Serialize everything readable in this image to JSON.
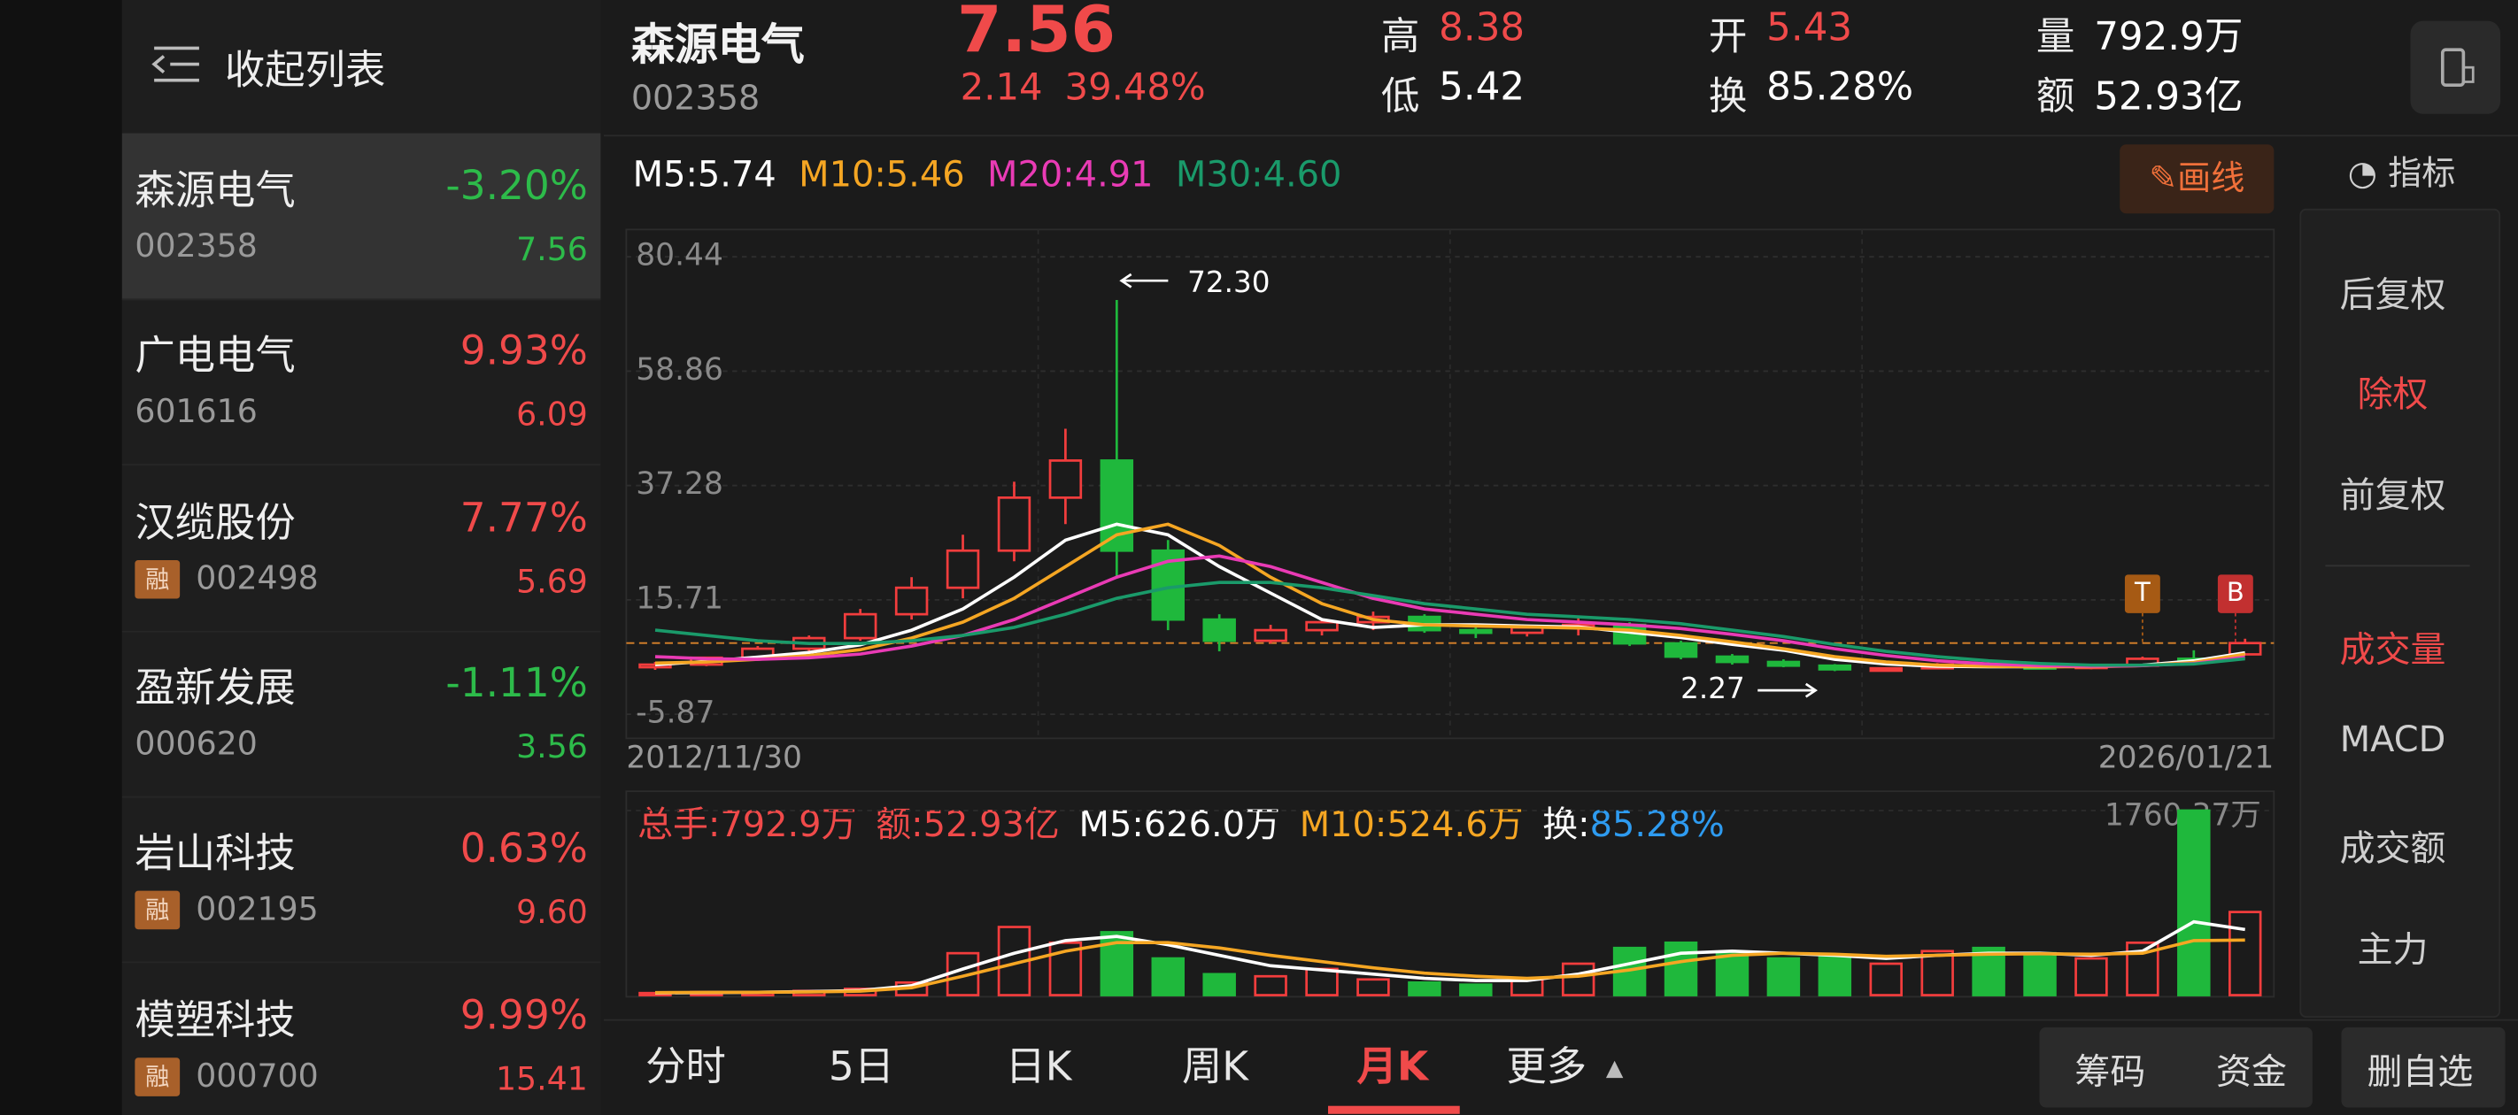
{
  "sidebar": {
    "title": "收起列表",
    "items": [
      {
        "name": "森源电气",
        "change": "-3.20%",
        "code": "002358",
        "price": "7.56"
      },
      {
        "name": "广电电气",
        "change": "9.93%",
        "code": "601616",
        "price": "6.09"
      },
      {
        "name": "汉缆股份",
        "change": "7.77%",
        "tag": "融",
        "code": "002498",
        "price": "5.69"
      },
      {
        "name": "盈新发展",
        "change": "-1.11%",
        "code": "000620",
        "price": "3.56"
      },
      {
        "name": "岩山科技",
        "change": "0.63%",
        "tag": "融",
        "code": "002195",
        "price": "9.60"
      },
      {
        "name": "模塑科技",
        "change": "9.99%",
        "tag": "融",
        "code": "000700",
        "price": "15.41"
      }
    ]
  },
  "header": {
    "title": "森源电气",
    "code": "002358",
    "price": "7.56",
    "change": "2.14",
    "change_pct": "39.48%",
    "stats": [
      {
        "label": "高",
        "value": "8.38",
        "color": "#f04a4a"
      },
      {
        "label": "低",
        "value": "5.42",
        "color": "#ffffff"
      },
      {
        "label": "开",
        "value": "5.43",
        "color": "#f04a4a"
      },
      {
        "label": "换",
        "value": "85.28%",
        "color": "#ffffff"
      },
      {
        "label": "量",
        "value": "792.9万",
        "color": "#ffffff"
      },
      {
        "label": "额",
        "value": "52.93亿",
        "color": "#ffffff"
      }
    ],
    "draw_button": "画线"
  },
  "chart_data": [
    {
      "type": "candlestick",
      "categories": [
        "2012/11/30",
        null,
        null,
        null,
        null,
        null,
        null,
        null,
        null,
        null,
        null,
        null,
        null,
        null,
        null,
        null,
        null,
        null,
        null,
        null,
        null,
        null,
        null,
        null,
        null,
        null,
        null,
        null,
        null,
        null,
        null,
        "2026/01/21"
      ],
      "open": [
        3,
        3.5,
        4.8,
        6.5,
        8.5,
        13,
        18,
        25,
        35,
        42,
        25,
        12,
        8,
        10,
        11.5,
        12.5,
        10,
        9.5,
        10.5,
        11,
        7.5,
        5,
        4,
        3.3,
        2.6,
        2.8,
        3.5,
        3.2,
        3.0,
        3.3,
        4.6,
        5.43
      ],
      "high": [
        4,
        5,
        7,
        9,
        14,
        20,
        28,
        38,
        48,
        72.3,
        27,
        13,
        11,
        12,
        13.5,
        13,
        11,
        11,
        12.5,
        11.5,
        8,
        5.5,
        4.5,
        3.6,
        3,
        3.8,
        4,
        3.6,
        3.4,
        5,
        6.2,
        8.38
      ],
      "low": [
        2.5,
        3.2,
        4.5,
        6,
        8,
        12,
        16,
        23,
        30,
        20,
        10,
        6,
        7.5,
        9,
        10,
        9.5,
        8.5,
        8.8,
        9,
        7,
        4.5,
        3.5,
        3,
        2.27,
        2.4,
        2.7,
        3,
        2.8,
        2.6,
        3.1,
        4.2,
        5.42
      ],
      "close": [
        3.5,
        4.8,
        6.5,
        8.5,
        13,
        18,
        25,
        35,
        42,
        25,
        12,
        8,
        10,
        11.5,
        12.5,
        10,
        9.5,
        10.5,
        11,
        7.5,
        5,
        4,
        3.3,
        2.6,
        2.8,
        3.5,
        3.2,
        3.0,
        3.3,
        4.6,
        4.4,
        7.56
      ],
      "up_color": "#f23d3d",
      "down_color": "#1fb83c",
      "ylim": [
        -5.87,
        80.44
      ],
      "yticks": [
        -5.87,
        15.71,
        37.28,
        58.86,
        80.44
      ],
      "grid": true,
      "series": [
        {
          "name": "M5",
          "legend_label": "M5:5.74",
          "color": "#ffffff",
          "values": [
            3.5,
            4.1,
            4.9,
            5.8,
            7.2,
            10,
            14,
            20,
            27,
            30,
            28,
            22,
            17,
            12,
            10.5,
            11,
            11,
            10.8,
            10.6,
            9.6,
            8.6,
            7.3,
            6.2,
            4.5,
            3.6,
            3.2,
            3.1,
            3.1,
            3.2,
            3.4,
            4.2,
            5.74
          ]
        },
        {
          "name": "M10",
          "legend_label": "M10:5.46",
          "color": "#f5a623",
          "values": [
            3.8,
            4.0,
            4.5,
            5.2,
            6.3,
            8.5,
            11.5,
            16,
            22,
            28,
            30,
            26,
            20,
            15,
            12,
            11,
            10.8,
            10.6,
            10.4,
            10,
            9,
            7.8,
            6.5,
            5,
            4,
            3.4,
            3.2,
            3.1,
            3.1,
            3.3,
            3.9,
            5.46
          ]
        },
        {
          "name": "M20",
          "legend_label": "M20:4.91",
          "color": "#e93bb5",
          "values": [
            5,
            4.6,
            4.5,
            4.8,
            5.5,
            7,
            9,
            12,
            16,
            20,
            23,
            24,
            22,
            19,
            16,
            14,
            13,
            12,
            11.5,
            11,
            10.3,
            9.2,
            8,
            6.5,
            5.2,
            4.2,
            3.6,
            3.3,
            3.2,
            3.3,
            3.7,
            4.91
          ]
        },
        {
          "name": "M30",
          "legend_label": "M30:4.60",
          "color": "#1a9a6a",
          "values": [
            10,
            9,
            8,
            7.5,
            7.5,
            8,
            9,
            10.5,
            13,
            16,
            18,
            19,
            19,
            18,
            16.5,
            15,
            14,
            13,
            12.5,
            12,
            11.2,
            10,
            8.8,
            7.3,
            6,
            5,
            4.2,
            3.7,
            3.4,
            3.4,
            3.6,
            4.6
          ]
        }
      ],
      "annotations": [
        {
          "text": "72.30"
        },
        {
          "text": "2.27"
        }
      ],
      "markers": [
        {
          "text": "T",
          "color": "#a65a14"
        },
        {
          "text": "B",
          "color": "#c23030"
        }
      ]
    },
    {
      "type": "bar",
      "values": [
        20,
        30,
        25,
        40,
        60,
        120,
        400,
        650,
        500,
        600,
        350,
        200,
        180,
        250,
        150,
        120,
        100,
        150,
        300,
        450,
        500,
        400,
        350,
        380,
        300,
        420,
        450,
        400,
        350,
        500,
        1760.37,
        792.9
      ],
      "ylim": [
        0,
        1760.37
      ],
      "yticks": [
        {
          "value": 1760.37,
          "label": "1760.37万"
        }
      ],
      "series": [
        {
          "name": "M5",
          "color": "#ffffff",
          "values": [
            22,
            25,
            28,
            33,
            45,
            90,
            250,
            400,
            520,
            560,
            480,
            380,
            280,
            240,
            200,
            160,
            140,
            140,
            200,
            300,
            400,
            420,
            400,
            380,
            350,
            380,
            400,
            400,
            380,
            420,
            700,
            626.0
          ]
        },
        {
          "name": "M10",
          "color": "#f5a623",
          "values": [
            25,
            26,
            27,
            30,
            38,
            70,
            180,
            300,
            420,
            500,
            500,
            450,
            380,
            320,
            260,
            210,
            180,
            160,
            180,
            240,
            320,
            380,
            400,
            390,
            370,
            380,
            390,
            395,
            390,
            400,
            520,
            524.6
          ]
        }
      ],
      "legend": [
        {
          "text": "总手:792.9万",
          "color": "#f04a4a"
        },
        {
          "text": "额:52.93亿",
          "color": "#f04a4a"
        },
        {
          "text": "M5:626.0万",
          "color": "#ffffff"
        },
        {
          "text": "M10:524.6万",
          "color": "#f5a623"
        },
        {
          "text": "换:",
          "color": "#ffffff"
        },
        {
          "text": "85.28%",
          "color": "#2e9bf0"
        }
      ]
    }
  ],
  "tabs": [
    "分时",
    "5日",
    "日K",
    "周K",
    "月K",
    "更多"
  ],
  "buttons": [
    "筹码",
    "资金",
    "删自选"
  ],
  "right_panel": {
    "title": "指标",
    "options": [
      "后复权",
      "除权",
      "前复权"
    ],
    "indicators": [
      "成交量",
      "MACD",
      "成交额",
      "主力"
    ]
  }
}
